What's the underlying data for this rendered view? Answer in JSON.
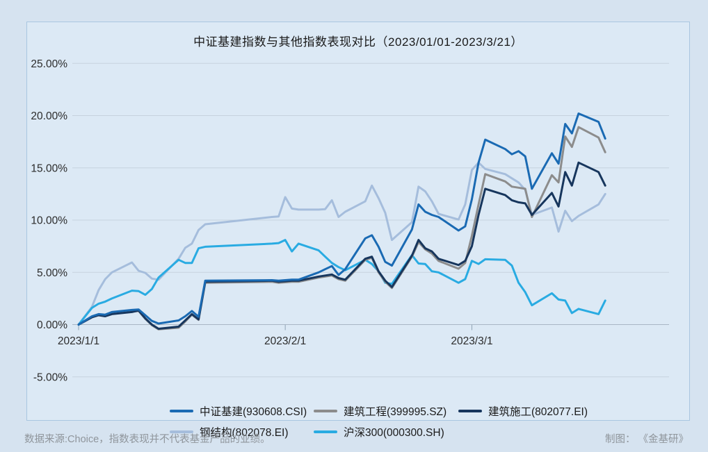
{
  "footer": {
    "source_note": "数据来源:Choice，指数表现并不代表基金产品的业绩。",
    "credit_note": "制图： 《金基研》"
  },
  "chart_data": {
    "type": "line",
    "title": "中证基建指数与其他指数表现对比（2023/01/01-2023/3/21）",
    "xlabel": "",
    "ylabel": "",
    "ylim": [
      -5,
      25
    ],
    "grid": "horizontal",
    "legend_position": "bottom",
    "background": "#dce9f5",
    "gridline_color": "#c6d2de",
    "axis_color": "#a9b6c4",
    "y_ticks": [
      {
        "value": 25,
        "label": "25.00%"
      },
      {
        "value": 20,
        "label": "20.00%"
      },
      {
        "value": 15,
        "label": "15.00%"
      },
      {
        "value": 10,
        "label": "10.00%"
      },
      {
        "value": 5,
        "label": "5.00%"
      },
      {
        "value": 0,
        "label": "0.00%"
      },
      {
        "value": -5,
        "label": "-5.00%"
      }
    ],
    "x_ticks": [
      {
        "day": 0,
        "label": "2023/1/1"
      },
      {
        "day": 31,
        "label": "2023/2/1"
      },
      {
        "day": 59,
        "label": "2023/3/1"
      }
    ],
    "x_unit": "days since 2023-01-01, cumulative return %",
    "days": [
      0,
      2,
      3,
      4,
      5,
      8,
      9,
      10,
      11,
      12,
      15,
      16,
      17,
      18,
      19,
      29,
      30,
      31,
      32,
      33,
      36,
      37,
      38,
      39,
      40,
      43,
      44,
      45,
      46,
      47,
      50,
      51,
      52,
      53,
      54,
      57,
      58,
      59,
      60,
      61,
      64,
      65,
      66,
      67,
      68,
      71,
      72,
      73,
      74,
      75,
      78,
      79
    ],
    "series": [
      {
        "label": "中证基建(930608.CSI)",
        "color": "#1a6ab3",
        "values": [
          0,
          0.8,
          1.0,
          0.95,
          1.2,
          1.4,
          1.45,
          0.9,
          0.35,
          0.1,
          0.4,
          0.8,
          1.3,
          0.75,
          4.2,
          4.25,
          4.2,
          4.25,
          4.3,
          4.3,
          5.0,
          5.3,
          5.6,
          4.75,
          5.3,
          8.25,
          8.55,
          7.45,
          6.0,
          5.65,
          9.1,
          11.5,
          10.8,
          10.5,
          10.3,
          9.0,
          9.4,
          12.0,
          15.5,
          17.7,
          16.8,
          16.3,
          16.6,
          16.1,
          13.0,
          16.4,
          15.4,
          19.2,
          18.3,
          20.2,
          19.4,
          17.8
        ]
      },
      {
        "label": "建筑工程(399995.SZ)",
        "color": "#8c8c8c",
        "values": [
          0,
          0.75,
          0.95,
          0.85,
          1.05,
          1.25,
          1.3,
          0.55,
          -0.05,
          -0.45,
          -0.3,
          0.3,
          0.95,
          0.45,
          4.0,
          4.1,
          4.0,
          4.05,
          4.1,
          4.1,
          4.5,
          4.6,
          4.7,
          4.35,
          4.2,
          6.2,
          6.4,
          5.0,
          4.1,
          3.5,
          6.5,
          7.9,
          7.2,
          6.8,
          6.1,
          5.35,
          5.9,
          8.5,
          11.5,
          14.4,
          13.7,
          13.2,
          13.1,
          13.0,
          10.3,
          14.3,
          13.6,
          18.0,
          17.0,
          18.9,
          17.9,
          16.5
        ]
      },
      {
        "label": "建筑施工(802077.EI)",
        "color": "#17365d",
        "values": [
          0,
          0.7,
          0.9,
          0.8,
          1.0,
          1.2,
          1.35,
          0.6,
          0.0,
          -0.4,
          -0.2,
          0.4,
          1.0,
          0.5,
          4.1,
          4.2,
          4.1,
          4.15,
          4.2,
          4.2,
          4.6,
          4.7,
          4.8,
          4.45,
          4.3,
          6.3,
          6.5,
          5.1,
          4.2,
          3.6,
          6.6,
          8.1,
          7.3,
          7.0,
          6.3,
          5.7,
          6.1,
          7.5,
          10.5,
          13.0,
          12.4,
          11.9,
          11.7,
          11.6,
          10.5,
          12.6,
          11.3,
          14.6,
          13.3,
          15.5,
          14.6,
          13.3
        ]
      },
      {
        "label": "钢结构(802078.EI)",
        "color": "#a5bddc",
        "values": [
          0,
          1.7,
          3.3,
          4.35,
          5.0,
          5.95,
          5.15,
          4.95,
          4.4,
          4.3,
          6.3,
          7.35,
          7.75,
          9.05,
          9.6,
          10.3,
          10.35,
          12.2,
          11.1,
          11.0,
          11.0,
          11.05,
          11.9,
          10.3,
          10.8,
          11.8,
          13.3,
          12.1,
          10.7,
          8.1,
          9.8,
          13.2,
          12.75,
          11.8,
          10.6,
          10.05,
          11.5,
          14.8,
          15.5,
          14.9,
          14.4,
          14.0,
          13.6,
          12.9,
          10.5,
          11.2,
          8.9,
          10.9,
          9.9,
          10.4,
          11.5,
          12.5
        ]
      },
      {
        "label": "沪深300(000300.SH)",
        "color": "#29abe2",
        "values": [
          0,
          1.6,
          2.0,
          2.2,
          2.5,
          3.25,
          3.2,
          2.85,
          3.4,
          4.5,
          6.2,
          5.9,
          5.9,
          7.3,
          7.45,
          7.75,
          7.8,
          8.1,
          7.0,
          7.75,
          7.1,
          6.5,
          5.9,
          5.5,
          5.2,
          6.2,
          5.8,
          5.1,
          4.0,
          3.9,
          6.65,
          5.85,
          5.8,
          5.1,
          5.0,
          4.0,
          4.35,
          6.1,
          5.8,
          6.25,
          6.2,
          5.65,
          4.0,
          3.1,
          1.85,
          3.0,
          2.4,
          2.3,
          1.1,
          1.5,
          1.0,
          2.3
        ]
      }
    ]
  }
}
